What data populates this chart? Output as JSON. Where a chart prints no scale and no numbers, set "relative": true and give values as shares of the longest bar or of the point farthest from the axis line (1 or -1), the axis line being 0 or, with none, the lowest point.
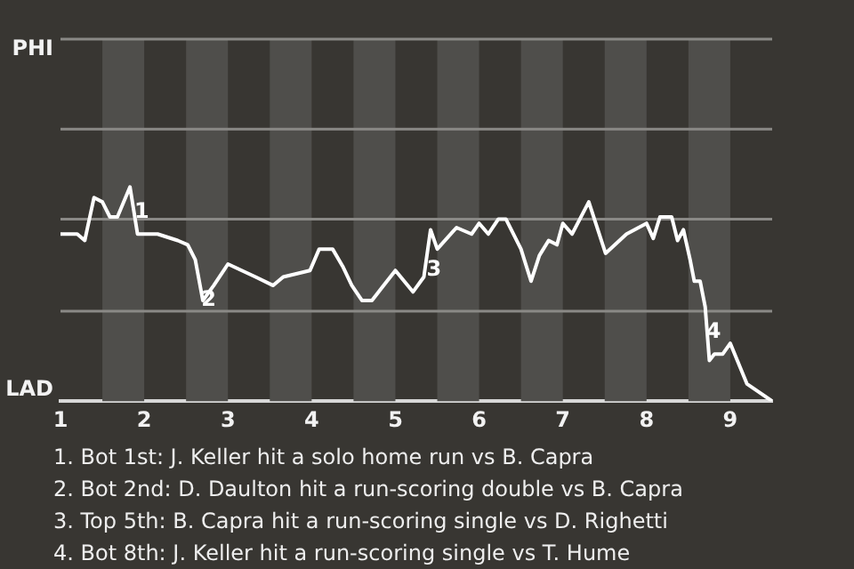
{
  "chart_data": {
    "type": "line",
    "relative": true,
    "x": [
      1,
      1.2,
      1.29,
      1.4,
      1.5,
      1.59,
      1.68,
      1.83,
      1.92,
      1.99,
      2.16,
      2.4,
      2.52,
      2.61,
      2.7,
      2.83,
      3,
      3.33,
      3.54,
      3.66,
      3.98,
      4.09,
      4.25,
      4.37,
      4.48,
      4.6,
      4.72,
      4.86,
      5,
      5.21,
      5.34,
      5.42,
      5.5,
      5.73,
      5.91,
      6,
      6.11,
      6.23,
      6.32,
      6.5,
      6.62,
      6.72,
      6.83,
      6.93,
      7,
      7.11,
      7.31,
      7.51,
      7.76,
      8,
      8.08,
      8.16,
      8.3,
      8.37,
      8.44,
      8.52,
      8.57,
      8.64,
      8.7,
      8.75,
      8.81,
      8.91,
      9,
      9.2,
      9.5
    ],
    "series": [
      {
        "color": "#ffffff",
        "values": [
          0.78,
          0.78,
          0.75,
          0.95,
          0.93,
          0.86,
          0.86,
          1,
          0.78,
          0.78,
          0.78,
          0.75,
          0.73,
          0.66,
          0.47,
          0.54,
          0.64,
          0.58,
          0.54,
          0.58,
          0.61,
          0.71,
          0.71,
          0.63,
          0.54,
          0.47,
          0.47,
          0.54,
          0.61,
          0.51,
          0.58,
          0.8,
          0.71,
          0.81,
          0.78,
          0.83,
          0.78,
          0.85,
          0.85,
          0.71,
          0.56,
          0.68,
          0.75,
          0.73,
          0.83,
          0.78,
          0.93,
          0.69,
          0.78,
          0.83,
          0.76,
          0.86,
          0.86,
          0.75,
          0.8,
          0.66,
          0.56,
          0.56,
          0.44,
          0.19,
          0.22,
          0.22,
          0.27,
          0.08,
          0
        ]
      }
    ],
    "xlim": [
      1,
      9.5
    ],
    "xticks": [
      1,
      2,
      3,
      4,
      5,
      6,
      7,
      8,
      9
    ],
    "ref_lines": [
      {
        "axis": "y",
        "value": 0.42,
        "color": "#8a8986"
      },
      {
        "axis": "y",
        "value": 0.85,
        "color": "#8a8986"
      },
      {
        "axis": "y",
        "value": 1.27,
        "color": "#8a8986"
      },
      {
        "axis": "y",
        "value": 1.69,
        "label": "PHI",
        "color": "#8a8986"
      }
    ],
    "marker": "none",
    "bands": [
      {
        "axis": "x",
        "from": 1.5,
        "to": 2,
        "color": "#4f4e4b"
      },
      {
        "axis": "x",
        "from": 2.5,
        "to": 3,
        "color": "#4f4e4b"
      },
      {
        "axis": "x",
        "from": 3.5,
        "to": 4,
        "color": "#4f4e4b"
      },
      {
        "axis": "x",
        "from": 4.5,
        "to": 5,
        "color": "#4f4e4b"
      },
      {
        "axis": "x",
        "from": 5.5,
        "to": 6,
        "color": "#4f4e4b"
      },
      {
        "axis": "x",
        "from": 6.5,
        "to": 7,
        "color": "#4f4e4b"
      },
      {
        "axis": "x",
        "from": 7.5,
        "to": 8,
        "color": "#4f4e4b"
      },
      {
        "axis": "x",
        "from": 8.5,
        "to": 9,
        "color": "#4f4e4b"
      }
    ],
    "annotations": [
      {
        "text": "1",
        "x": 1.97,
        "y": 0.88
      },
      {
        "text": "2",
        "x": 2.77,
        "y": 0.47
      },
      {
        "text": "3",
        "x": 5.46,
        "y": 0.61
      },
      {
        "text": "4",
        "x": 8.8,
        "y": 0.32
      },
      "LAD",
      "1. Bot 1st: J. Keller hit a solo home run vs B. Capra",
      "2. Bot 2nd: D. Daulton hit a run-scoring double vs B. Capra",
      "3. Top 5th: B. Capra hit a run-scoring single vs D. Righetti",
      "4. Bot 8th: J. Keller hit a run-scoring single vs T. Hume"
    ]
  }
}
